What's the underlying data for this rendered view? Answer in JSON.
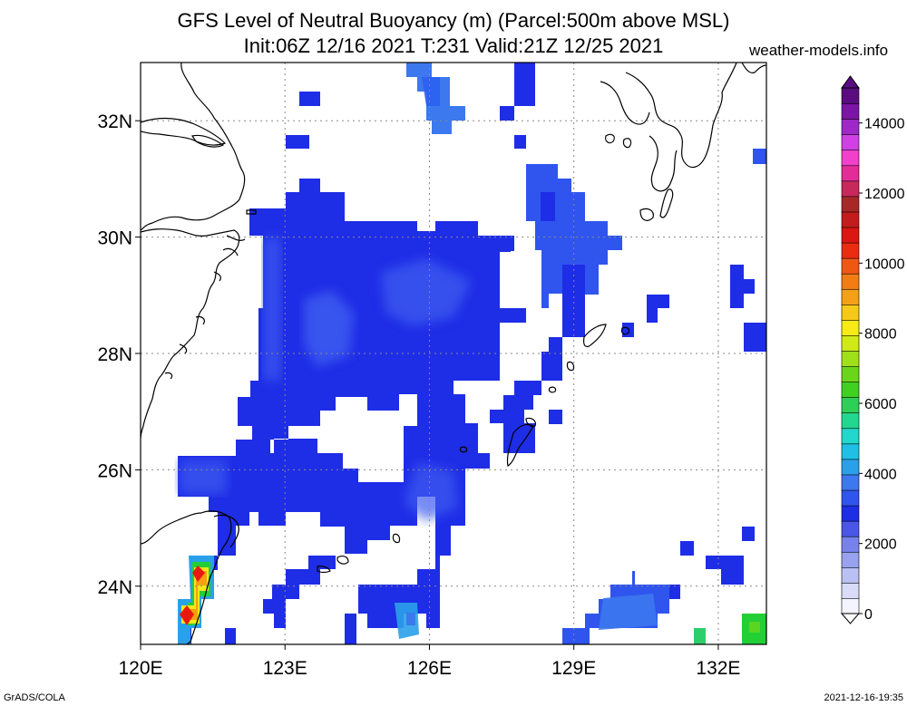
{
  "title": {
    "line1": "GFS Level of Neutral Buoyancy (m) (Parcel:500m above MSL)",
    "line2": "Init:06Z 12/16 2021 T:231 Valid:21Z 12/25 2021"
  },
  "site": "weather-models.info",
  "footer_left": "GrADS/COLA",
  "footer_right": "2021-12-16-19:35",
  "map": {
    "lon_range": [
      120,
      133
    ],
    "lat_range": [
      23,
      33
    ],
    "lon_ticks": [
      {
        "value": 120,
        "label": "120E"
      },
      {
        "value": 123,
        "label": "123E"
      },
      {
        "value": 126,
        "label": "126E"
      },
      {
        "value": 129,
        "label": "129E"
      },
      {
        "value": 132,
        "label": "132E"
      }
    ],
    "lat_ticks": [
      {
        "value": 24,
        "label": "24N"
      },
      {
        "value": 26,
        "label": "26N"
      },
      {
        "value": 28,
        "label": "28N"
      },
      {
        "value": 30,
        "label": "30N"
      },
      {
        "value": 32,
        "label": "32N"
      }
    ],
    "colors": {
      "blue_1500": "#1e2de6",
      "blue_2000": "#2f55ee",
      "blue_2500": "#3c78ee",
      "cyan_3000": "#2aa0ea",
      "green_4000": "#2ec06a",
      "green_5000": "#22d036",
      "red_10000": "#e81a10",
      "orange_8000": "#f4a010",
      "yellow_7000": "#f4e81a"
    }
  },
  "colorbar": {
    "ticks": [
      {
        "value": 0,
        "label": "0"
      },
      {
        "value": 2000,
        "label": "2000"
      },
      {
        "value": 4000,
        "label": "4000"
      },
      {
        "value": 6000,
        "label": "6000"
      },
      {
        "value": 8000,
        "label": "8000"
      },
      {
        "value": 10000,
        "label": "10000"
      },
      {
        "value": 12000,
        "label": "12000"
      },
      {
        "value": 14000,
        "label": "14000"
      }
    ],
    "range": [
      0,
      15000
    ],
    "colors": [
      "#f4f4ff",
      "#d8dcf8",
      "#b8c0f4",
      "#98a2f0",
      "#7882ec",
      "#4a56e8",
      "#1e2de6",
      "#2f55ee",
      "#3c78ee",
      "#2aa0ea",
      "#1ec0e6",
      "#20d8cc",
      "#22d890",
      "#2ecf56",
      "#40d020",
      "#6ad61a",
      "#a0e018",
      "#d0ea18",
      "#f6ea18",
      "#f6c818",
      "#f6a016",
      "#f47c14",
      "#f05812",
      "#ec2c10",
      "#dc1610",
      "#c41c1c",
      "#a82828",
      "#c8285c",
      "#e42c98",
      "#f240cc",
      "#d040e4",
      "#a028c8",
      "#7c14a8",
      "#5a0c80"
    ]
  }
}
